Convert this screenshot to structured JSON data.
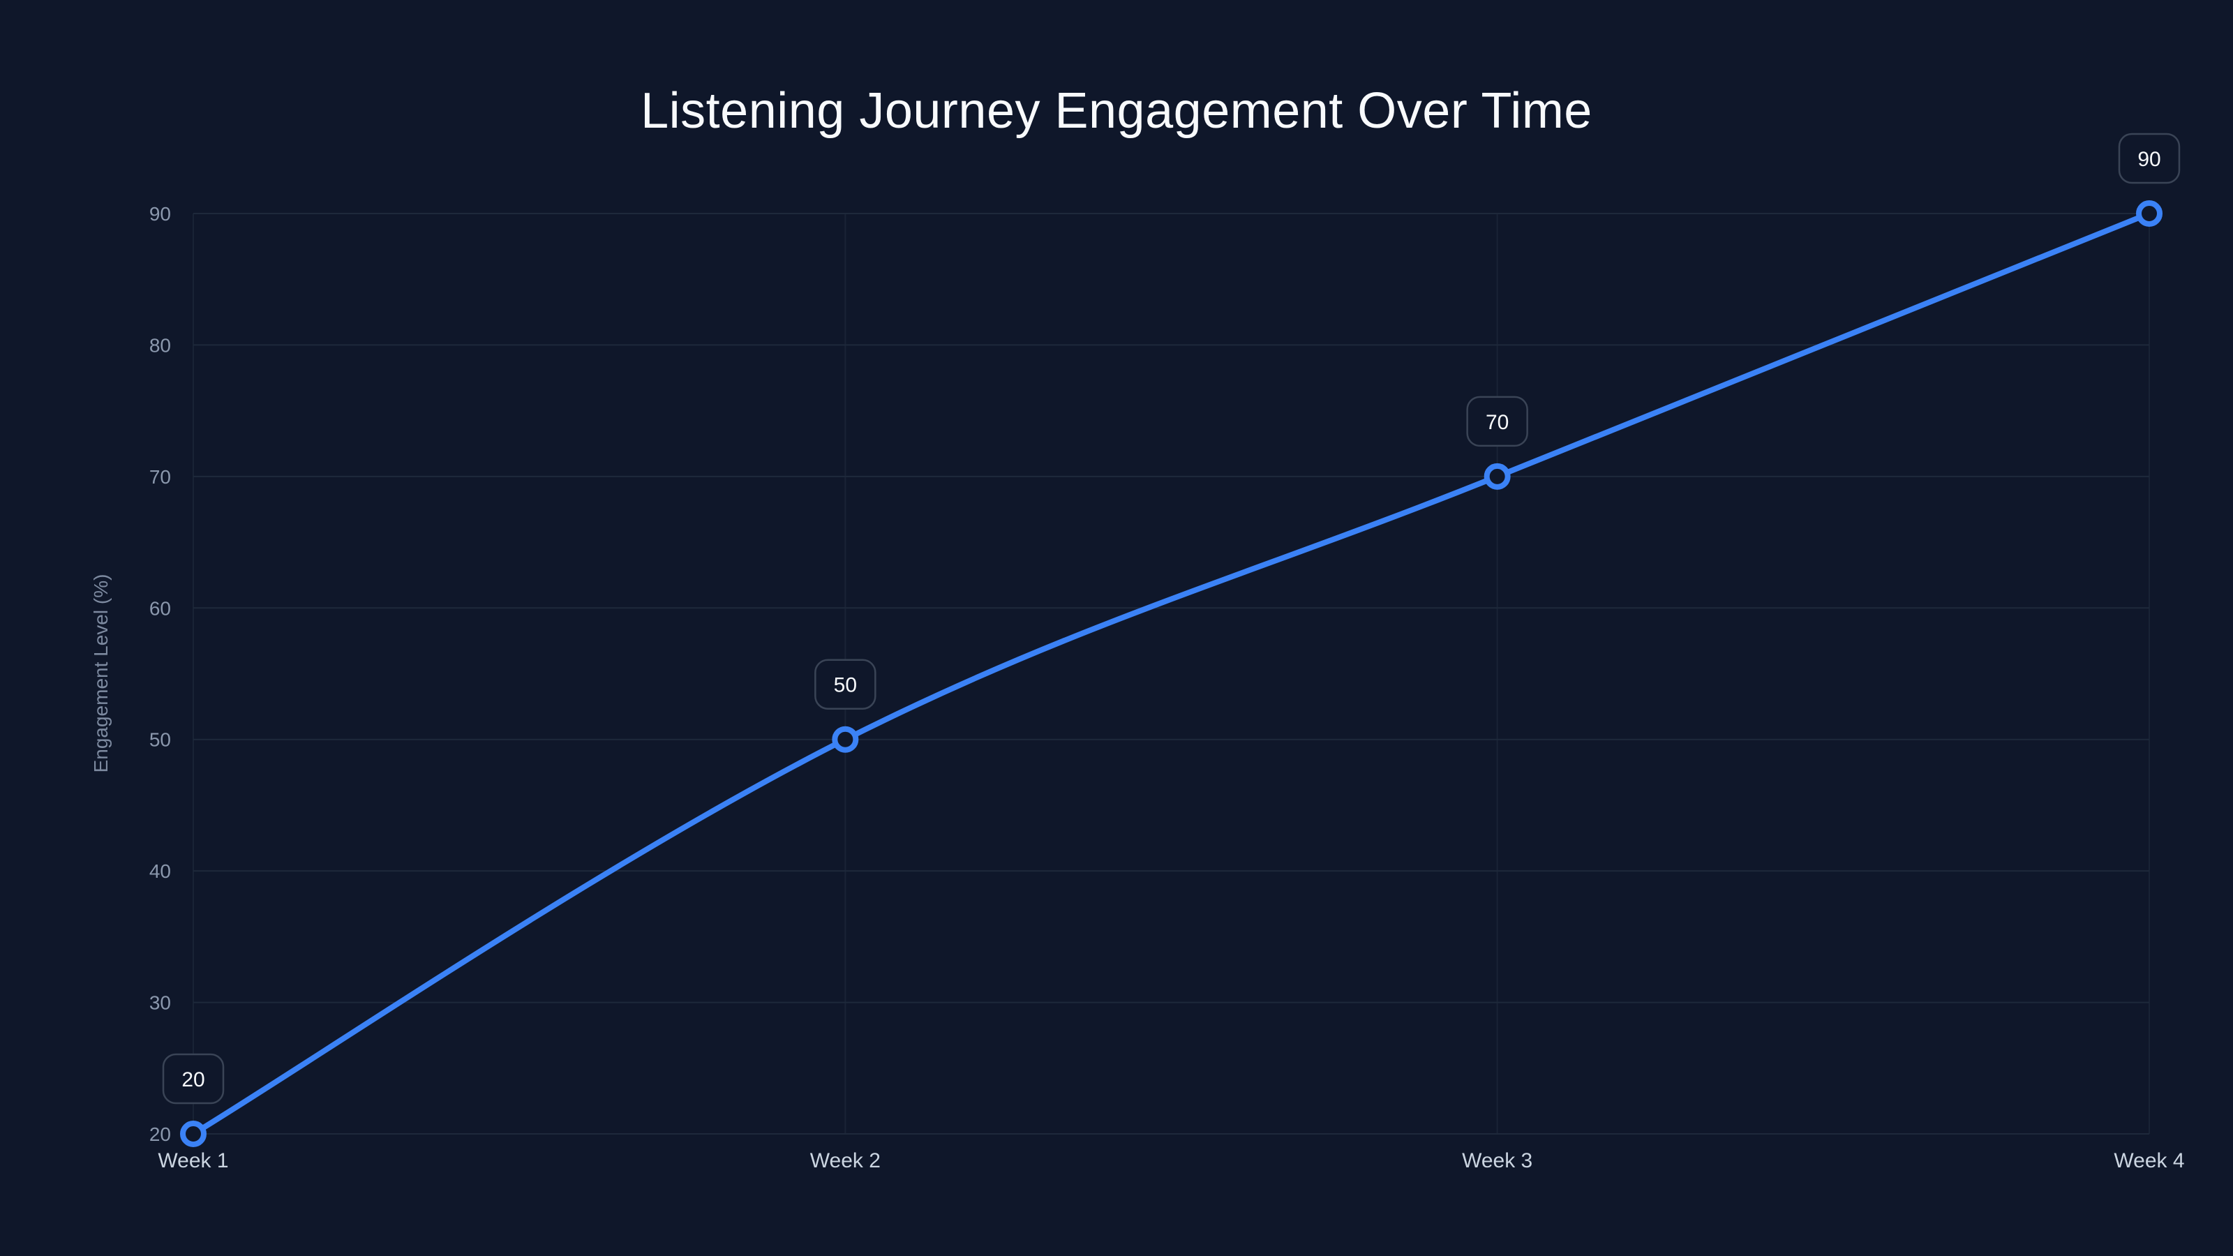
{
  "chart_data": {
    "type": "line",
    "title": "Listening Journey Engagement Over Time",
    "xlabel": "",
    "ylabel": "Engagement Level (%)",
    "categories": [
      "Week 1",
      "Week 2",
      "Week 3",
      "Week 4"
    ],
    "series": [
      {
        "name": "Engagement Level",
        "values": [
          20,
          50,
          70,
          90
        ],
        "color": "#3b82f6"
      }
    ],
    "ylim": [
      20,
      90
    ],
    "yticks": [
      20,
      30,
      40,
      50,
      60,
      70,
      80,
      90
    ],
    "grid": true,
    "legend": "none",
    "data_labels": [
      "20",
      "50",
      "70",
      "90"
    ],
    "smooth": true
  },
  "colors": {
    "background": "#0f172a",
    "line": "#3b82f6",
    "grid": "#1e293b",
    "label_border": "#3a4456"
  }
}
